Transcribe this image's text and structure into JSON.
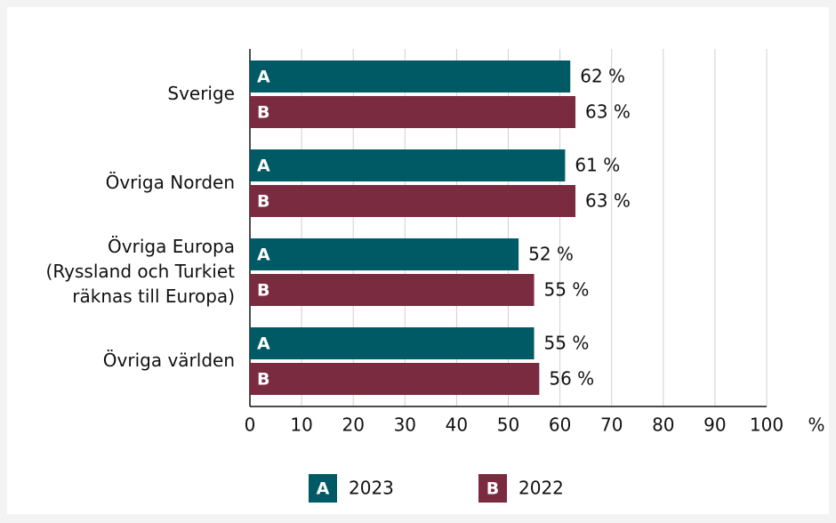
{
  "chart_data": {
    "type": "bar",
    "orientation": "horizontal",
    "categories": [
      "Sverige",
      "Övriga Norden",
      "Övriga Europa\n(Ryssland och Turkiet\nräknas till Europa)",
      "Övriga världen"
    ],
    "series": [
      {
        "name": "2023",
        "label": "A",
        "color": "#005a66",
        "values": [
          62,
          61,
          52,
          55
        ],
        "value_labels": [
          "62 %",
          "61 %",
          "52 %",
          "55 %"
        ]
      },
      {
        "name": "2022",
        "label": "B",
        "color": "#7b2b3f",
        "values": [
          63,
          63,
          55,
          56
        ],
        "value_labels": [
          "63 %",
          "63 %",
          "55 %",
          "56 %"
        ]
      }
    ],
    "xlim": [
      0,
      100
    ],
    "xticks": [
      0,
      10,
      20,
      30,
      40,
      50,
      60,
      70,
      80,
      90,
      100
    ],
    "xunit": "%",
    "grid": true,
    "legend": "bottom"
  }
}
